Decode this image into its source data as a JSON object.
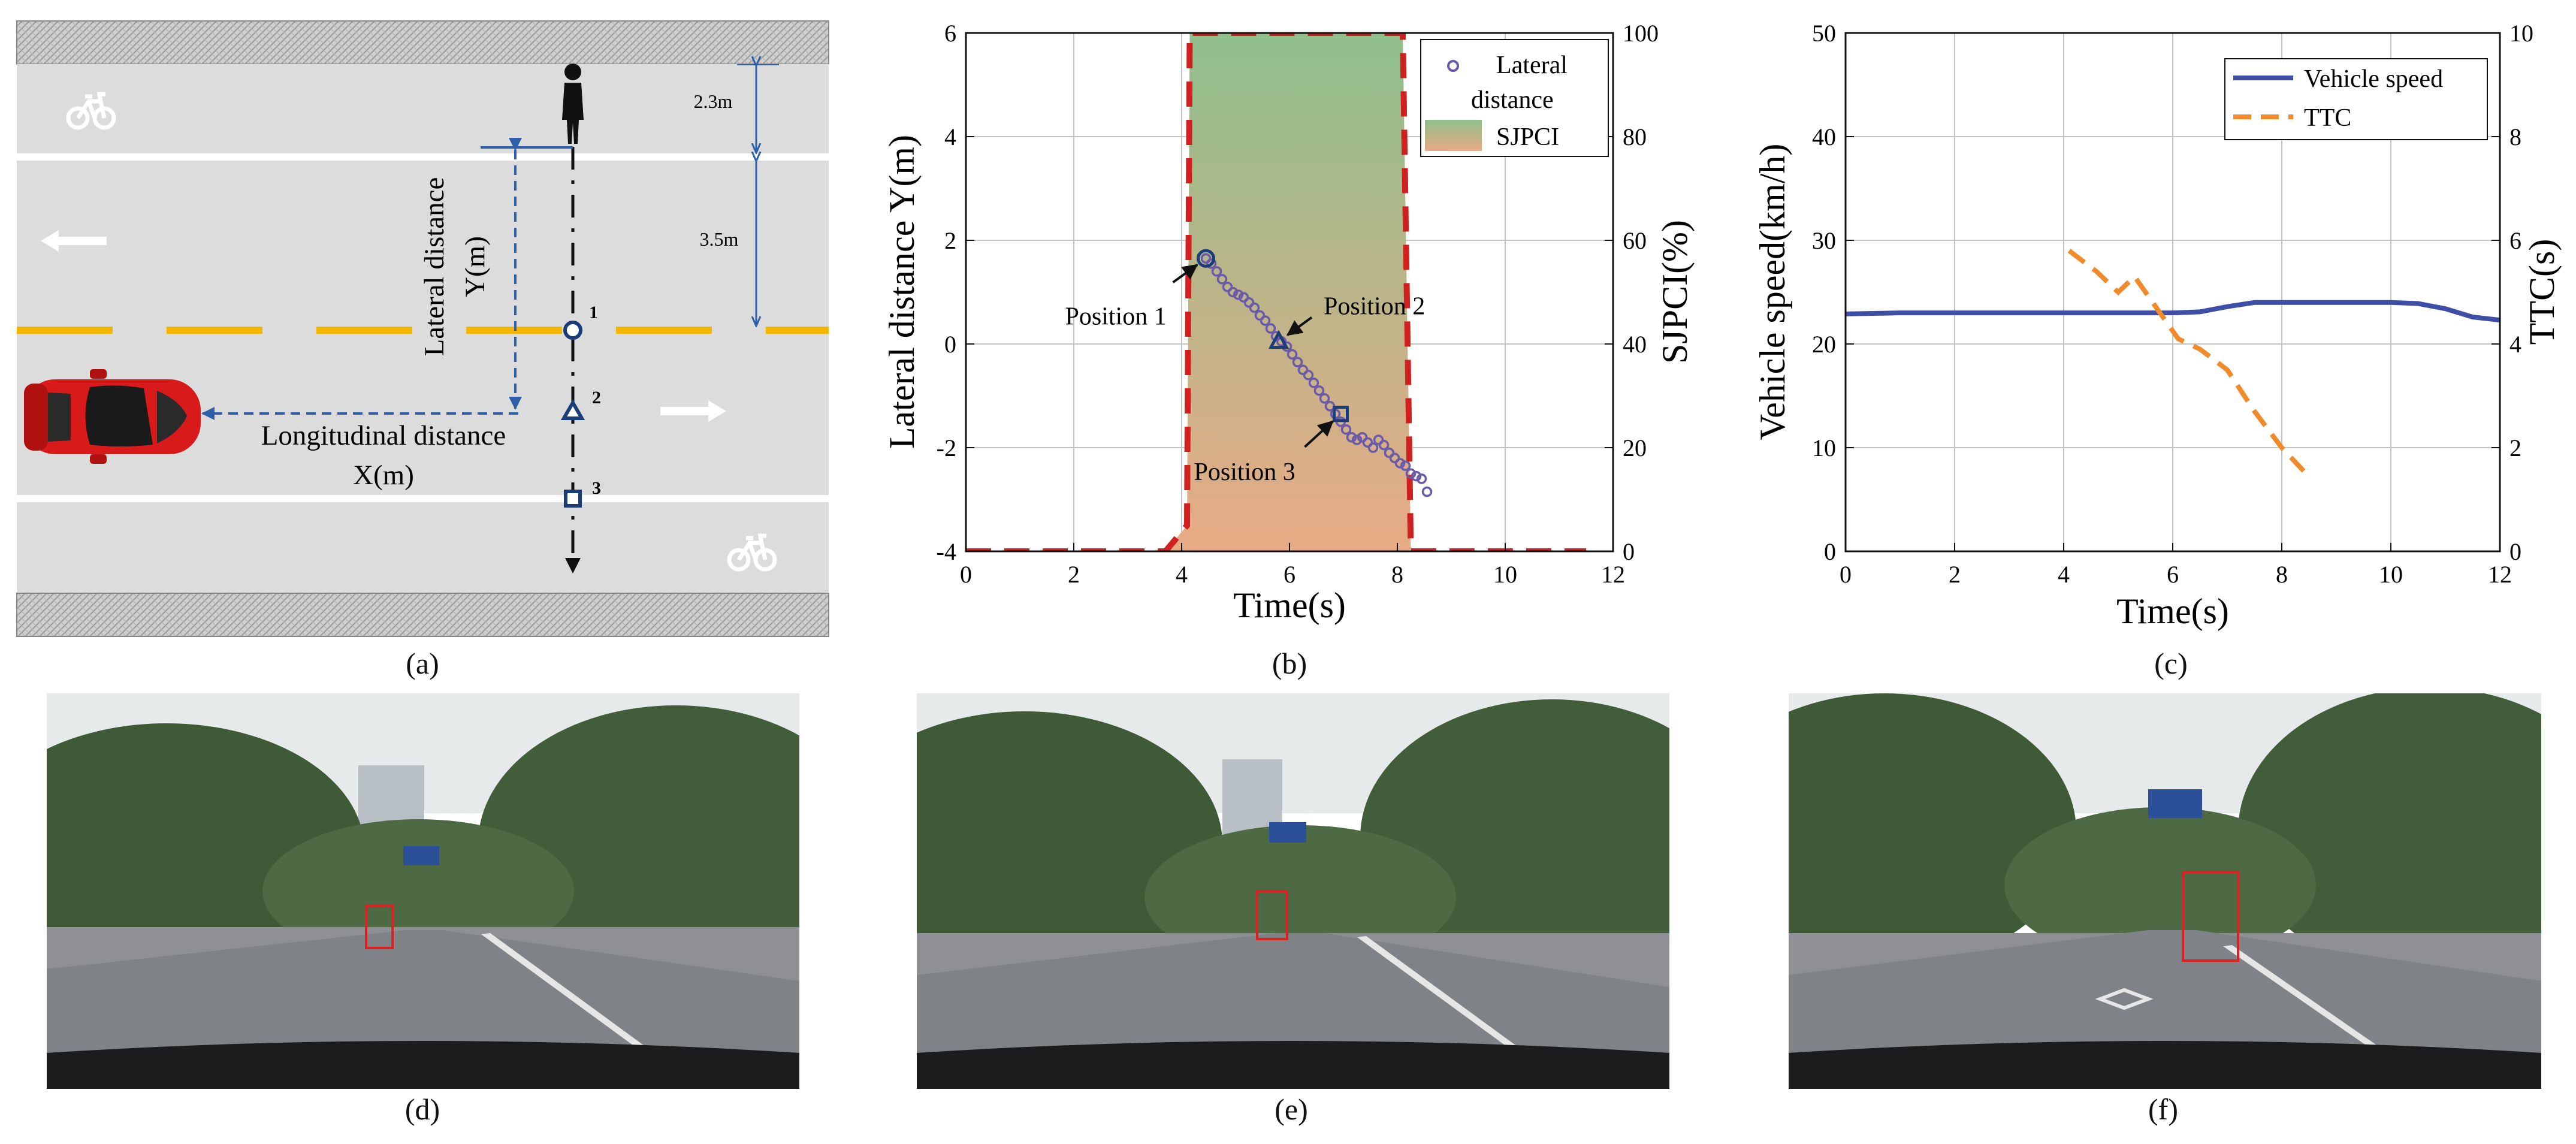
{
  "panel_a": {
    "label_lateral_line1": "Lateral distance",
    "label_lateral_line2": "Y(m)",
    "label_longitudinal_line1": "Longitudinal distance",
    "label_longitudinal_line2": "X(m)",
    "dim_top": "2.3m",
    "dim_mid": "3.5m",
    "marker_labels": [
      "1",
      "2",
      "3"
    ]
  },
  "captions": [
    "(a)",
    "(b)",
    "(c)",
    "(d)",
    "(e)",
    "(f)"
  ],
  "chart_data": [
    {
      "id": "b",
      "type": "line",
      "xlabel": "Time(s)",
      "ylabel": "Lateral distance Y(m)",
      "ylabel_right": "SJPCI(%)",
      "xlim": [
        0,
        12
      ],
      "ylim": [
        -4,
        6
      ],
      "ylim_right": [
        0,
        100
      ],
      "xticks": [
        0,
        2,
        4,
        6,
        8,
        10,
        12
      ],
      "yticks": [
        -4,
        -2,
        0,
        2,
        4,
        6
      ],
      "yticks_right": [
        0,
        20,
        40,
        60,
        80,
        100
      ],
      "grid": true,
      "legend_position": "top-right",
      "series": [
        {
          "name": "Lateral distance",
          "legend_lines": [
            "Lateral",
            "distance"
          ],
          "axis": "left",
          "marker": "circle",
          "color": "#6a5aa8",
          "x": [
            4.45,
            4.55,
            4.65,
            4.75,
            4.85,
            4.95,
            5.05,
            5.15,
            5.25,
            5.35,
            5.45,
            5.55,
            5.65,
            5.75,
            5.85,
            5.95,
            6.05,
            6.15,
            6.25,
            6.35,
            6.45,
            6.55,
            6.65,
            6.75,
            6.85,
            6.95,
            7.05,
            7.15,
            7.25,
            7.35,
            7.45,
            7.55,
            7.65,
            7.75,
            7.85,
            7.95,
            8.05,
            8.15,
            8.25,
            8.35,
            8.45,
            8.55
          ],
          "y": [
            1.65,
            1.55,
            1.4,
            1.25,
            1.1,
            1.0,
            0.95,
            0.9,
            0.8,
            0.7,
            0.55,
            0.45,
            0.3,
            0.15,
            0.05,
            -0.05,
            -0.2,
            -0.35,
            -0.5,
            -0.6,
            -0.75,
            -0.9,
            -1.05,
            -1.2,
            -1.35,
            -1.5,
            -1.65,
            -1.8,
            -1.85,
            -1.8,
            -1.9,
            -2.0,
            -1.85,
            -1.95,
            -2.1,
            -2.2,
            -2.3,
            -2.35,
            -2.5,
            -2.55,
            -2.6,
            -2.85
          ]
        },
        {
          "name": "SJPCI",
          "axis": "right",
          "type": "area",
          "fill_top": "#8fbf8c",
          "fill_bottom": "#e8ab86",
          "edge_color": "#d12020",
          "x": [
            0,
            3.7,
            4.1,
            4.15,
            8.1,
            8.25,
            11.5
          ],
          "y": [
            0,
            0,
            5,
            100,
            100,
            0,
            0
          ]
        }
      ],
      "annotations": [
        {
          "text": "Position 1",
          "x": 4.45,
          "y": 1.65,
          "marker": "circle"
        },
        {
          "text": "Position 2",
          "x": 5.8,
          "y": 0.05,
          "marker": "triangle"
        },
        {
          "text": "Position 3",
          "x": 6.95,
          "y": -1.35,
          "marker": "square"
        }
      ]
    },
    {
      "id": "c",
      "type": "line",
      "xlabel": "Time(s)",
      "ylabel": "Vehicle  speed(km/h)",
      "ylabel_right": "TTC(s)",
      "xlim": [
        0,
        12
      ],
      "ylim": [
        0,
        50
      ],
      "ylim_right": [
        0,
        10
      ],
      "xticks": [
        0,
        2,
        4,
        6,
        8,
        10,
        12
      ],
      "yticks": [
        0,
        10,
        20,
        30,
        40,
        50
      ],
      "yticks_right": [
        0,
        2,
        4,
        6,
        8,
        10
      ],
      "grid": true,
      "legend_position": "top-right",
      "series": [
        {
          "name": "Vehicle speed",
          "axis": "left",
          "style": "solid",
          "color": "#3f4fa8",
          "x": [
            0,
            1,
            2,
            3,
            4,
            5,
            6,
            6.5,
            7,
            7.5,
            8,
            9,
            10,
            10.5,
            11,
            11.5,
            12
          ],
          "y": [
            22.9,
            23,
            23,
            23,
            23,
            23,
            23,
            23.1,
            23.6,
            24,
            24,
            24,
            24,
            23.9,
            23.4,
            22.6,
            22.3
          ]
        },
        {
          "name": "TTC",
          "axis": "right",
          "style": "dashed",
          "color": "#f08a2a",
          "x": [
            4.1,
            4.6,
            5.0,
            5.3,
            5.7,
            6.1,
            6.5,
            7.0,
            7.5,
            8.0,
            8.4
          ],
          "y": [
            5.8,
            5.4,
            5.0,
            5.3,
            4.7,
            4.1,
            3.9,
            3.5,
            2.7,
            2.0,
            1.55
          ]
        }
      ]
    }
  ]
}
